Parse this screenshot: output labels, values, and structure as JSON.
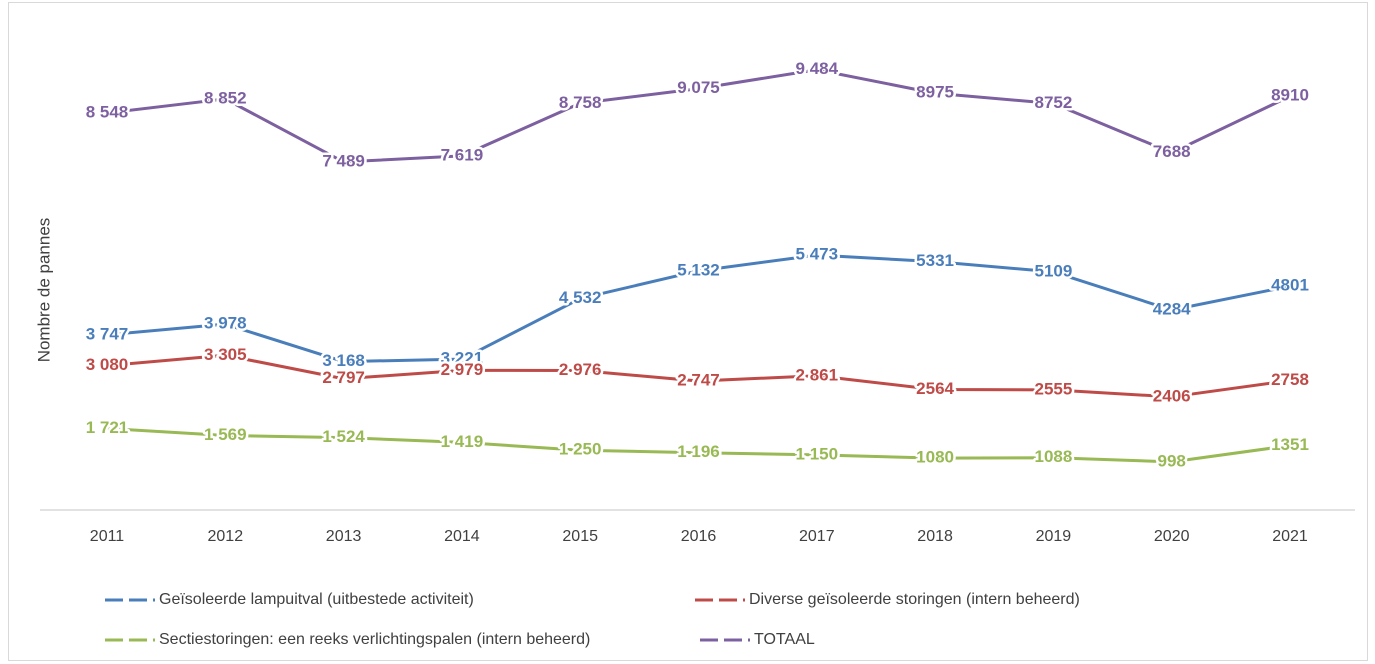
{
  "chart_data": {
    "type": "line",
    "y_label": "Nombre de pannes",
    "categories": [
      "2011",
      "2012",
      "2013",
      "2014",
      "2015",
      "2016",
      "2017",
      "2018",
      "2019",
      "2020",
      "2021"
    ],
    "series": [
      {
        "name": "Geïsoleerde lampuitval (uitbestede activiteit)",
        "color": "#4a7ebb",
        "values": [
          3747,
          3978,
          3168,
          3221,
          4532,
          5132,
          5473,
          5331,
          5109,
          4284,
          4801
        ],
        "value_labels": [
          "3 747",
          "3 978",
          "3 168",
          "3 221",
          "4 532",
          "5 132",
          "5 473",
          "5331",
          "5109",
          "4284",
          "4801"
        ]
      },
      {
        "name": "Diverse geïsoleerde storingen (intern beheerd)",
        "color": "#be4b48",
        "values": [
          3080,
          3305,
          2797,
          2979,
          2976,
          2747,
          2861,
          2564,
          2555,
          2406,
          2758
        ],
        "value_labels": [
          "3 080",
          "3 305",
          "2 797",
          "2 979",
          "2 976",
          "2 747",
          "2 861",
          "2564",
          "2555",
          "2406",
          "2758"
        ]
      },
      {
        "name": "Sectiestoringen: een reeks verlichtingspalen (intern beheerd)",
        "color": "#98b954",
        "values": [
          1721,
          1569,
          1524,
          1419,
          1250,
          1196,
          1150,
          1080,
          1088,
          998,
          1351
        ],
        "value_labels": [
          "1 721",
          "1 569",
          "1 524",
          "1 419",
          "1 250",
          "1 196",
          "1 150",
          "1080",
          "1088",
          "998",
          "1351"
        ]
      },
      {
        "name": "TOTAAL",
        "color": "#7d60a0",
        "values": [
          8548,
          8852,
          7489,
          7619,
          8758,
          9075,
          9484,
          8975,
          8752,
          7688,
          8910
        ],
        "value_labels": [
          "8 548",
          "8 852",
          "7 489",
          "7 619",
          "8 758",
          "9 075",
          "9 484",
          "8975",
          "8752",
          "7688",
          "8910"
        ]
      }
    ],
    "ylim": [
      0,
      10560
    ],
    "legend": "bottom"
  }
}
